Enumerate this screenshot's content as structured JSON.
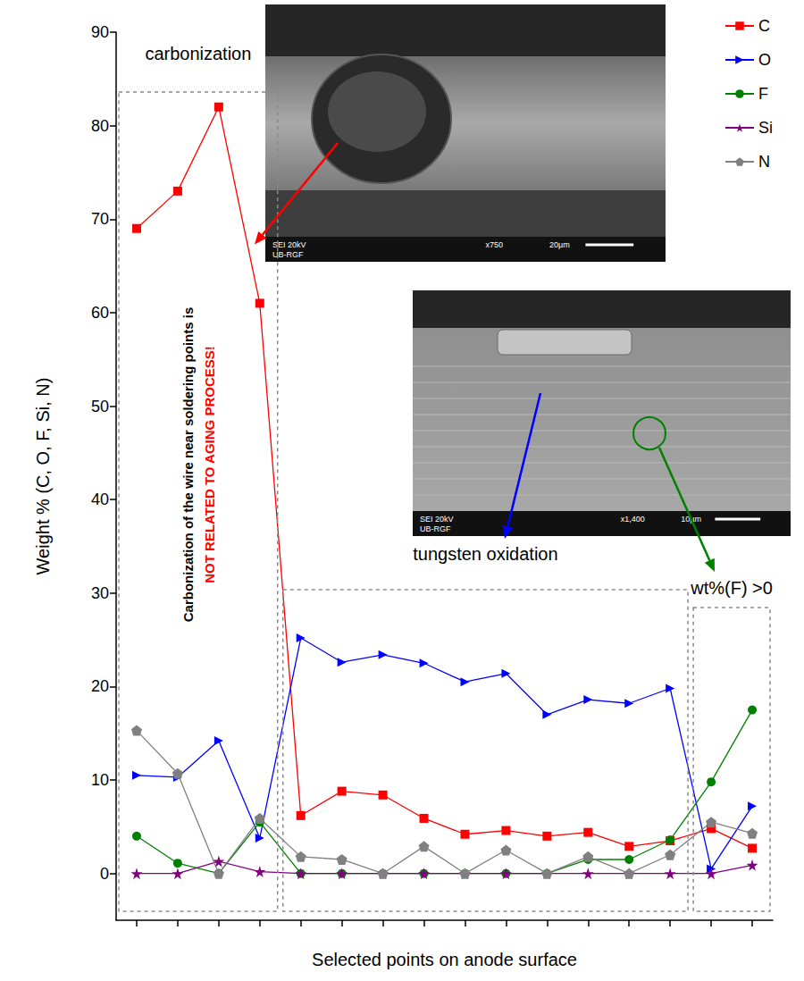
{
  "chart_data": {
    "type": "line",
    "x_label": "Selected points on anode surface",
    "y_label": "Weight % (C, O, F, Si, N)",
    "categories": [
      null,
      null,
      null,
      null,
      null,
      null,
      null,
      null,
      null,
      null,
      null,
      null,
      null,
      null,
      null,
      null
    ],
    "series": [
      {
        "name": "C",
        "color": "#ff0000",
        "marker": "square",
        "values": [
          69,
          73,
          82,
          61,
          6.2,
          8.8,
          8.4,
          5.9,
          4.2,
          4.6,
          4.0,
          4.4,
          2.9,
          3.5,
          4.8,
          2.7
        ]
      },
      {
        "name": "O",
        "color": "#0000ff",
        "marker": "triangle-right",
        "values": [
          10.5,
          10.3,
          14.2,
          3.8,
          25.2,
          22.6,
          23.4,
          22.5,
          20.5,
          21.4,
          17.0,
          18.6,
          18.2,
          19.8,
          0.5,
          7.2
        ]
      },
      {
        "name": "F",
        "color": "#008000",
        "marker": "circle",
        "values": [
          4.0,
          1.1,
          0,
          5.5,
          0,
          0,
          0,
          0,
          0,
          0,
          0,
          1.5,
          1.5,
          3.6,
          9.8,
          17.5
        ]
      },
      {
        "name": "Si",
        "color": "#800080",
        "marker": "star",
        "values": [
          0,
          0,
          1.3,
          0.2,
          0,
          0,
          0,
          0,
          0,
          0,
          0,
          0,
          0,
          0,
          0,
          0.9
        ]
      },
      {
        "name": "N",
        "color": "#808080",
        "marker": "pentagon",
        "values": [
          15.3,
          10.7,
          0,
          5.9,
          1.8,
          1.5,
          0,
          2.9,
          0,
          2.5,
          0,
          1.8,
          0,
          2.0,
          5.5,
          4.3
        ]
      }
    ],
    "ylim": [
      -5,
      90
    ],
    "yticks": [
      0,
      10,
      20,
      30,
      40,
      50,
      60,
      70,
      80,
      90
    ],
    "grid": false,
    "legend": "top-right",
    "tick_labels": "y",
    "annotations": [
      {
        "text": "carbonization",
        "color": "#000000"
      },
      {
        "text": "Carbonization of the wire near soldering points is",
        "color": "#000000"
      },
      {
        "text": "NOT RELATED TO AGING PROCESS!",
        "color": "#ff0000"
      },
      {
        "text": "tungsten oxidation",
        "color": "#000000"
      },
      {
        "text": "wt%(F) >0",
        "color": "#000000"
      }
    ],
    "insets": [
      {
        "labels": [
          "SEI 20kV",
          "UB-RGF",
          "x750",
          "20µm"
        ]
      },
      {
        "labels": [
          "SEI 20kV",
          "UB-RGF",
          "x1,400",
          "10µm"
        ]
      }
    ]
  }
}
